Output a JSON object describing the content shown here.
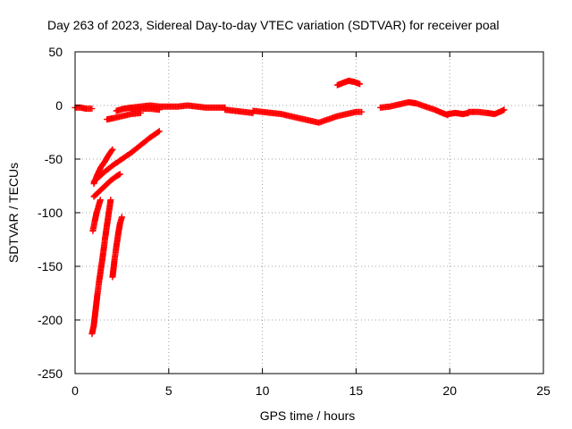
{
  "chart_data": {
    "type": "scatter",
    "title": "Day 263 of 2023, Sidereal Day-to-day VTEC variation (SDTVAR) for receiver poal",
    "xlabel": "GPS time / hours",
    "ylabel": "SDTVAR / TECUs",
    "xlim": [
      0,
      25
    ],
    "ylim": [
      -250,
      50
    ],
    "x_ticks": [
      0,
      5,
      10,
      15,
      20,
      25
    ],
    "y_ticks": [
      -250,
      -200,
      -150,
      -100,
      -50,
      0,
      50
    ],
    "grid": true,
    "marker": "+",
    "series": [
      {
        "name": "SDTVAR",
        "color": "#ff0000",
        "segments": [
          [
            [
              0.0,
              -2
            ],
            [
              0.3,
              -2
            ],
            [
              0.6,
              -3
            ],
            [
              0.9,
              -3
            ]
          ],
          [
            [
              0.9,
              -213
            ],
            [
              1.0,
              -205
            ],
            [
              1.1,
              -190
            ],
            [
              1.2,
              -175
            ],
            [
              1.3,
              -162
            ],
            [
              1.4,
              -150
            ],
            [
              1.5,
              -138
            ],
            [
              1.6,
              -124
            ],
            [
              1.7,
              -112
            ],
            [
              1.8,
              -100
            ],
            [
              1.9,
              -88
            ]
          ],
          [
            [
              0.95,
              -117
            ],
            [
              1.05,
              -108
            ],
            [
              1.15,
              -100
            ],
            [
              1.25,
              -94
            ],
            [
              1.35,
              -88
            ]
          ],
          [
            [
              2.0,
              -160
            ],
            [
              2.1,
              -145
            ],
            [
              2.2,
              -132
            ],
            [
              2.3,
              -120
            ],
            [
              2.4,
              -110
            ],
            [
              2.5,
              -104
            ]
          ],
          [
            [
              1.0,
              -85
            ],
            [
              1.3,
              -80
            ],
            [
              1.6,
              -75
            ],
            [
              1.9,
              -70
            ],
            [
              2.2,
              -66
            ],
            [
              2.4,
              -64
            ]
          ],
          [
            [
              1.0,
              -73
            ],
            [
              1.2,
              -64
            ],
            [
              1.4,
              -57
            ],
            [
              1.6,
              -52
            ],
            [
              1.8,
              -46
            ],
            [
              2.0,
              -41
            ]
          ],
          [
            [
              1.0,
              -71
            ],
            [
              1.5,
              -63
            ],
            [
              2.0,
              -56
            ],
            [
              2.5,
              -50
            ],
            [
              3.0,
              -44
            ],
            [
              3.5,
              -37
            ],
            [
              4.0,
              -30
            ],
            [
              4.5,
              -24
            ]
          ],
          [
            [
              1.7,
              -13
            ],
            [
              2.0,
              -12
            ],
            [
              2.5,
              -10
            ],
            [
              3.0,
              -8
            ],
            [
              3.5,
              -7
            ]
          ],
          [
            [
              2.2,
              -5
            ],
            [
              2.6,
              -3
            ],
            [
              3.0,
              -2
            ],
            [
              3.5,
              -1
            ],
            [
              4.0,
              0
            ],
            [
              4.5,
              -1
            ],
            [
              5.0,
              -1
            ],
            [
              5.5,
              -1
            ],
            [
              6.0,
              0
            ],
            [
              6.5,
              -1
            ],
            [
              7.0,
              -2
            ],
            [
              7.5,
              -2
            ],
            [
              8.0,
              -2
            ]
          ],
          [
            [
              3.0,
              -3
            ],
            [
              3.5,
              -3
            ],
            [
              4.0,
              -3
            ],
            [
              4.5,
              -4
            ]
          ],
          [
            [
              8.0,
              -4
            ],
            [
              8.5,
              -5
            ],
            [
              9.0,
              -6
            ],
            [
              9.5,
              -7
            ]
          ],
          [
            [
              9.5,
              -5
            ],
            [
              10.0,
              -6
            ],
            [
              10.5,
              -7
            ],
            [
              11.0,
              -8
            ],
            [
              11.5,
              -10
            ],
            [
              12.0,
              -12
            ],
            [
              12.5,
              -14
            ],
            [
              13.0,
              -16
            ],
            [
              13.5,
              -13
            ],
            [
              14.0,
              -10
            ],
            [
              14.5,
              -8
            ],
            [
              15.0,
              -6
            ],
            [
              15.3,
              -6
            ]
          ],
          [
            [
              14.0,
              19
            ],
            [
              14.3,
              21
            ],
            [
              14.6,
              23
            ],
            [
              14.9,
              22
            ],
            [
              15.2,
              20
            ]
          ],
          [
            [
              16.3,
              -2
            ],
            [
              16.8,
              -1
            ],
            [
              17.3,
              1
            ],
            [
              17.8,
              3
            ],
            [
              18.2,
              2
            ],
            [
              18.7,
              -1
            ],
            [
              19.2,
              -4
            ],
            [
              19.6,
              -7
            ],
            [
              19.9,
              -9
            ]
          ],
          [
            [
              19.9,
              -8
            ],
            [
              20.3,
              -7
            ],
            [
              20.7,
              -8
            ],
            [
              21.0,
              -7
            ]
          ],
          [
            [
              21.0,
              -6
            ],
            [
              21.5,
              -6
            ],
            [
              22.0,
              -7
            ],
            [
              22.4,
              -8
            ],
            [
              22.8,
              -5
            ],
            [
              22.9,
              -4
            ]
          ]
        ]
      }
    ]
  }
}
